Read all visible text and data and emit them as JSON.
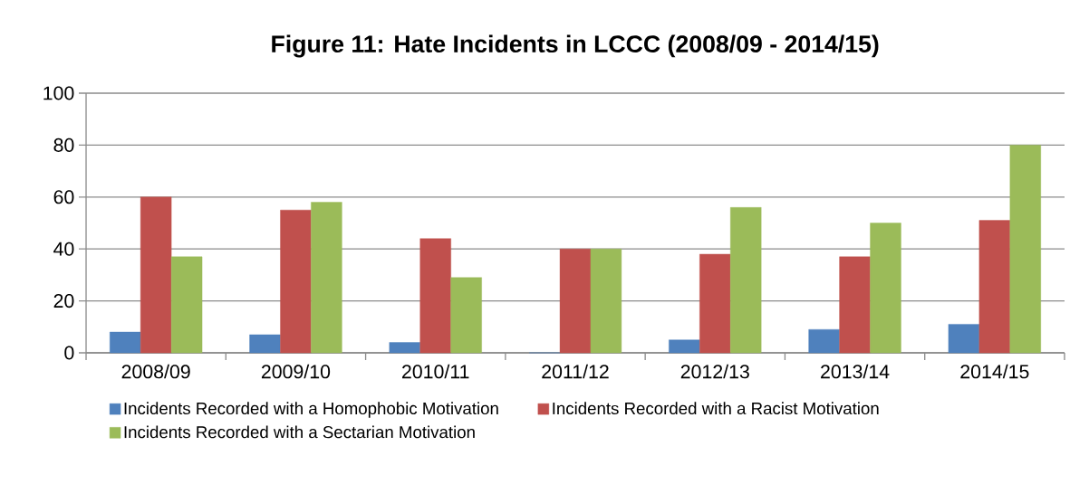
{
  "chart_data": {
    "type": "bar",
    "title": "Figure 11:   Hate Incidents in LCCC (2008/09 - 2014/15)",
    "categories": [
      "2008/09",
      "2009/10",
      "2010/11",
      "2011/12",
      "2012/13",
      "2013/14",
      "2014/15"
    ],
    "series": [
      {
        "name": "Incidents Recorded with a Homophobic Motivation",
        "color": "#4f81bd",
        "values": [
          8,
          7,
          4,
          0,
          5,
          9,
          11
        ]
      },
      {
        "name": "Incidents Recorded with a Racist Motivation",
        "color": "#c0504d",
        "values": [
          60,
          55,
          44,
          40,
          38,
          37,
          51
        ]
      },
      {
        "name": "Incidents Recorded with a Sectarian Motivation",
        "color": "#9bbb59",
        "values": [
          37,
          58,
          29,
          40,
          56,
          50,
          80
        ]
      }
    ],
    "ylim": [
      0,
      100
    ],
    "yticks": [
      0,
      20,
      40,
      60,
      80,
      100
    ],
    "grid": "y",
    "legend": "bottom"
  }
}
